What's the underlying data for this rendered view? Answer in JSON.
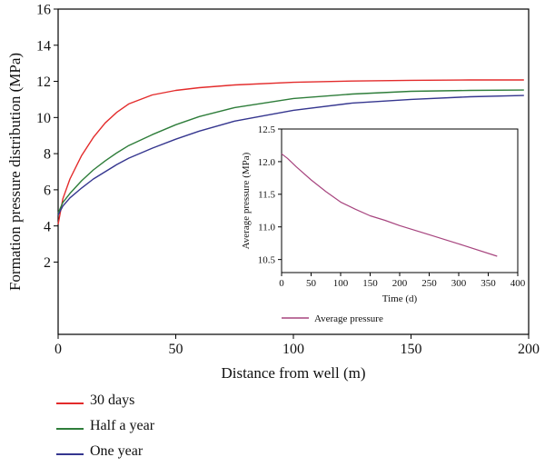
{
  "chart_data": [
    {
      "type": "line",
      "title": "",
      "xlabel": "Distance from well (m)",
      "ylabel": "Formation pressure distribution (MPa)",
      "xlim": [
        0,
        200
      ],
      "ylim": [
        -2,
        16
      ],
      "xticks": [
        0,
        50,
        100,
        150,
        200
      ],
      "yticks": [
        2,
        4,
        6,
        8,
        10,
        12,
        14,
        16
      ],
      "grid": false,
      "legend_position": "below-left",
      "series": [
        {
          "name": "30 days",
          "color": "#e32b2b",
          "x": [
            0,
            2,
            5,
            10,
            15,
            20,
            25,
            30,
            40,
            50,
            60,
            75,
            100,
            125,
            150,
            175,
            198
          ],
          "y": [
            4.1,
            5.5,
            6.6,
            7.9,
            8.9,
            9.7,
            10.3,
            10.75,
            11.25,
            11.5,
            11.65,
            11.8,
            11.95,
            12.02,
            12.06,
            12.08,
            12.08
          ]
        },
        {
          "name": "Half a year",
          "color": "#2e7d3a",
          "x": [
            0,
            2,
            5,
            10,
            15,
            20,
            25,
            30,
            40,
            50,
            60,
            75,
            100,
            125,
            150,
            175,
            198
          ],
          "y": [
            4.7,
            5.3,
            5.8,
            6.5,
            7.1,
            7.6,
            8.05,
            8.45,
            9.05,
            9.6,
            10.05,
            10.55,
            11.05,
            11.3,
            11.45,
            11.5,
            11.52
          ]
        },
        {
          "name": "One year",
          "color": "#35368f",
          "x": [
            0,
            2,
            5,
            10,
            15,
            20,
            25,
            30,
            40,
            50,
            60,
            75,
            100,
            125,
            150,
            175,
            198
          ],
          "y": [
            4.6,
            5.1,
            5.55,
            6.1,
            6.6,
            7.0,
            7.4,
            7.75,
            8.3,
            8.8,
            9.25,
            9.8,
            10.4,
            10.8,
            11.0,
            11.15,
            11.22
          ]
        }
      ]
    },
    {
      "type": "line",
      "title": "",
      "xlabel": "Time (d)",
      "ylabel": "Average pressure (MPa)",
      "xlim": [
        0,
        400
      ],
      "ylim": [
        10.3,
        12.5
      ],
      "xticks": [
        0,
        50,
        100,
        150,
        200,
        250,
        300,
        350,
        400
      ],
      "yticks": [
        10.5,
        11.0,
        11.5,
        12.0,
        12.5
      ],
      "grid": false,
      "legend_position": "below",
      "series": [
        {
          "name": "Average pressure",
          "color": "#a7457f",
          "x": [
            0,
            10,
            25,
            50,
            75,
            100,
            125,
            150,
            175,
            200,
            250,
            300,
            365
          ],
          "y": [
            12.12,
            12.05,
            11.92,
            11.72,
            11.54,
            11.38,
            11.27,
            11.17,
            11.1,
            11.02,
            10.88,
            10.74,
            10.55
          ]
        }
      ]
    }
  ]
}
